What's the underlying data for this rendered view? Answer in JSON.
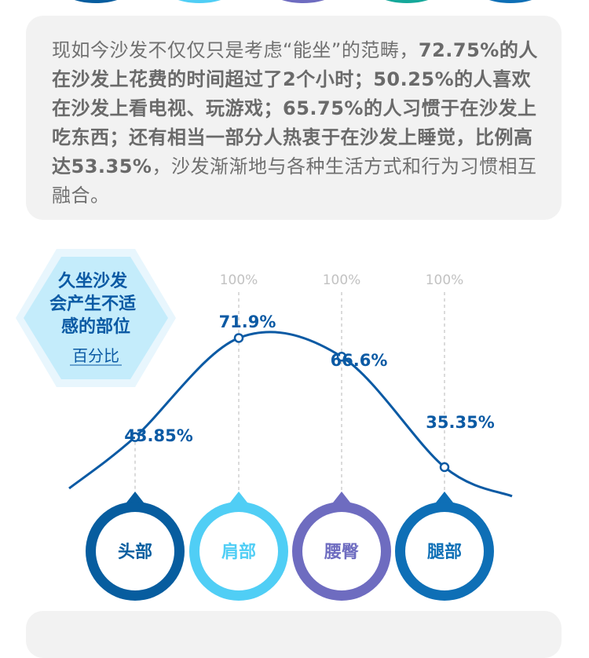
{
  "paragraph": [
    {
      "text": "现如今沙发不仅仅只是考虑“能坐”的范畴，",
      "bold": false
    },
    {
      "text": "72.75%的人在沙发上花费的时间超过了2个小时；50.25%的人喜欢在沙发上看电视、玩游戏；65.75%的人习惯于在沙发上吃东西；还有相当一部分人热衷于在沙发上睡觉，比例高达53.35%",
      "bold": true
    },
    {
      "text": "，沙发渐渐地与各种生活方式和行为习惯相互融合。",
      "bold": false
    }
  ],
  "badge": {
    "title_lines": [
      "久坐沙发",
      "会产生不适",
      "感的部位"
    ],
    "subtitle": "百分比"
  },
  "colors": {
    "dark_blue": "#075d9f",
    "light_blue": "#50cef5",
    "purple": "#6e6cc0",
    "blue": "#0e6fb6",
    "hex_fill": "#c4ecfb",
    "curve": "#0b5aa4",
    "card_bg": "#f2f2f2"
  },
  "chart_data": {
    "type": "line",
    "categories": [
      "头部",
      "肩部",
      "腰臀",
      "腿部"
    ],
    "values": [
      43.85,
      71.9,
      66.6,
      35.35
    ],
    "value_labels": [
      "43.85%",
      "71.9%",
      "66.6%",
      "35.35%"
    ],
    "reference_labels": [
      "100%",
      "100%",
      "100%"
    ],
    "category_colors": [
      "#075d9f",
      "#50cef5",
      "#6e6cc0",
      "#0e6fb6"
    ],
    "ylim": [
      0,
      100
    ],
    "grid": false
  }
}
